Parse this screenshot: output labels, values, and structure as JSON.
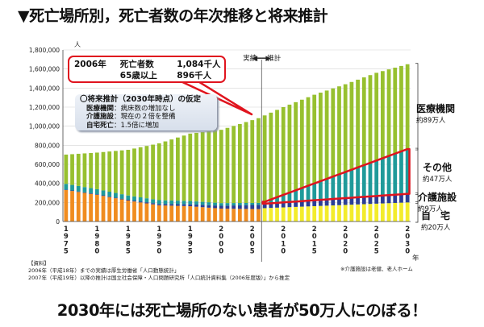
{
  "title": "▼死亡場所別，死亡者数の年次推移と将来推計",
  "headline": "2030年には死亡場所のない患者が50万人にのぼる！",
  "callout": {
    "row1": [
      "2006年",
      "死亡者数",
      "1,084千人"
    ],
    "row2": [
      "",
      "65歳以上",
      "896千人"
    ]
  },
  "assumption": {
    "heading": "〇将来推計（2030年時点）の仮定",
    "lines": [
      {
        "key": "医療機関",
        "val": "：病床数の増加なし"
      },
      {
        "key": "介護施設",
        "val": "：現在の２倍を整備"
      },
      {
        "key": "自宅死亡",
        "val": "：1.5倍に増加"
      }
    ]
  },
  "categories": {
    "medical": {
      "name": "医療機関",
      "sub": "約89万人"
    },
    "other": {
      "name": "その他",
      "sub": "約47万人"
    },
    "care": {
      "name": "介護施設",
      "sub": "約9万人"
    },
    "home": {
      "name": "自　宅",
      "sub": "約20万人"
    }
  },
  "divider": {
    "left": "実績",
    "arrow": "◀━━▶",
    "right": "推計"
  },
  "axis": {
    "x_unit": "年",
    "y_unit": "人"
  },
  "source": {
    "head": "【資料】",
    "line1": "2006年（平成18年）までの実績は厚生労働省「人口動態統計」",
    "line2": "2007年（平成19年）以降の推計は国立社会保障・人口問題研究所「人口統計資料集（2006年度版）」から推定"
  },
  "footnote": "※介護施設は老健、老人ホーム",
  "colors": {
    "medical": "#97c02f",
    "other": "#1f9a9a",
    "care": "#2b3e95",
    "home_past": "#f08c1f",
    "home_future": "#f3ec2c",
    "frame": "#e0141e"
  },
  "chart_data": {
    "type": "bar",
    "stacked": true,
    "ylim": [
      0,
      1800000
    ],
    "yticks": [
      0,
      200000,
      400000,
      600000,
      800000,
      1000000,
      1200000,
      1400000,
      1600000,
      1800000
    ],
    "ytick_labels": [
      "0",
      "200,000",
      "400,000",
      "600,000",
      "800,000",
      "1,000,000",
      "1,200,000",
      "1,400,000",
      "1,600,000",
      "1,800,000"
    ],
    "x_start": 1975,
    "x_end": 2030,
    "xtick_labels": [
      "1975",
      "1980",
      "1985",
      "1990",
      "1995",
      "2000",
      "2005",
      "2010",
      "2015",
      "2020",
      "2025",
      "2030"
    ],
    "actual_end": 2006,
    "totals": [
      {
        "year": 1975,
        "value": 702000
      },
      {
        "year": 1980,
        "value": 723000
      },
      {
        "year": 1985,
        "value": 752000
      },
      {
        "year": 1990,
        "value": 820000
      },
      {
        "year": 1995,
        "value": 922000
      },
      {
        "year": 2000,
        "value": 962000
      },
      {
        "year": 2006,
        "value": 1084000
      },
      {
        "year": 2010,
        "value": 1200000
      },
      {
        "year": 2015,
        "value": 1330000
      },
      {
        "year": 2020,
        "value": 1440000
      },
      {
        "year": 2025,
        "value": 1560000
      },
      {
        "year": 2030,
        "value": 1650000
      }
    ],
    "series": [
      {
        "key": "home",
        "points": [
          {
            "year": 1975,
            "value": 330000
          },
          {
            "year": 1980,
            "value": 280000
          },
          {
            "year": 1985,
            "value": 220000
          },
          {
            "year": 1990,
            "value": 170000
          },
          {
            "year": 1995,
            "value": 160000
          },
          {
            "year": 2000,
            "value": 135000
          },
          {
            "year": 2006,
            "value": 130000
          },
          {
            "year": 2007,
            "value": 140000
          },
          {
            "year": 2030,
            "value": 200000
          }
        ]
      },
      {
        "key": "care",
        "points": [
          {
            "year": 1975,
            "value": 5000
          },
          {
            "year": 1985,
            "value": 8000
          },
          {
            "year": 1995,
            "value": 20000
          },
          {
            "year": 2000,
            "value": 30000
          },
          {
            "year": 2006,
            "value": 45000
          },
          {
            "year": 2030,
            "value": 90000
          }
        ]
      },
      {
        "key": "other",
        "points": [
          {
            "year": 1975,
            "value": 60000
          },
          {
            "year": 1985,
            "value": 45000
          },
          {
            "year": 1995,
            "value": 35000
          },
          {
            "year": 2006,
            "value": 20000
          },
          {
            "year": 2007,
            "value": 20000
          },
          {
            "year": 2030,
            "value": 470000
          }
        ]
      },
      {
        "key": "medical",
        "points": [
          {
            "year": 1975,
            "value": 307000
          },
          {
            "year": 1980,
            "value": 385000
          },
          {
            "year": 1985,
            "value": 475000
          },
          {
            "year": 1990,
            "value": 600000
          },
          {
            "year": 1995,
            "value": 700000
          },
          {
            "year": 2000,
            "value": 770000
          },
          {
            "year": 2006,
            "value": 889000
          },
          {
            "year": 2030,
            "value": 890000
          }
        ]
      }
    ]
  }
}
